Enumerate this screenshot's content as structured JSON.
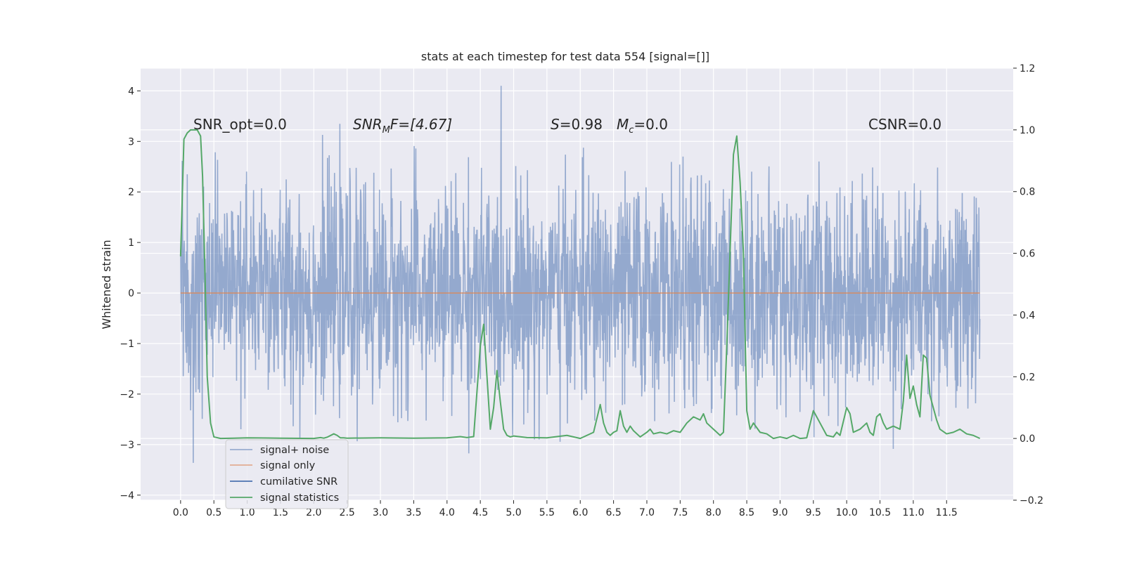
{
  "chart_data": {
    "type": "line",
    "title": "stats at each timestep for test data 554 [signal=[]]",
    "ylabel": "Whitened strain",
    "xlabel": "",
    "xlim": [
      -0.6,
      12.5
    ],
    "ylim": [
      -4.1,
      4.45
    ],
    "y2lim": [
      -0.2,
      1.2
    ],
    "grid": true,
    "x_ticks": [
      "0.0",
      "0.5",
      "1.0",
      "1.5",
      "2.0",
      "2.5",
      "3.0",
      "3.5",
      "4.0",
      "4.5",
      "5.0",
      "5.5",
      "6.0",
      "6.5",
      "7.0",
      "7.5",
      "8.0",
      "8.5",
      "9.0",
      "9.5",
      "10.0",
      "10.5",
      "11.0",
      "11.5"
    ],
    "y_ticks": [
      "4",
      "3",
      "2",
      "1",
      "0",
      "−1",
      "−2",
      "−3",
      "−4"
    ],
    "y2_ticks": [
      "1.2",
      "1.0",
      "0.8",
      "0.6",
      "0.4",
      "0.2",
      "0.0",
      "−0.2"
    ],
    "annotations": {
      "snr_opt": "SNR_opt=0.0",
      "snr_mf_sym": "SNR",
      "snr_mf_sub": "M",
      "snr_mf_rest": "F=[4.67]",
      "s_sym": "S",
      "s_rest": "=0.98",
      "mc_sym": "M",
      "mc_sub": "c",
      "mc_rest": "=0.0",
      "csnr": "CSNR=0.0"
    },
    "legend_placement": "lower-left",
    "series": [
      {
        "name": "signal+ noise",
        "axis": "left",
        "color": "#4c72b0",
        "note_visual": "dense whitened noise trace spanning roughly -3.7 to 4.1 over 0 to 12 s",
        "extent": {
          "x": [
            0.0,
            12.0
          ],
          "y_min": -3.7,
          "y_max": 4.1
        }
      },
      {
        "name": "signal only",
        "axis": "left",
        "color": "#dd8452",
        "x": [
          0.0,
          12.0
        ],
        "y": [
          0.0,
          0.0
        ]
      },
      {
        "name": "cumilative SNR",
        "axis": "right",
        "color": "#4c72b0",
        "x": [],
        "y": []
      },
      {
        "name": "signal statistics",
        "axis": "right",
        "color": "#55a868",
        "x": [
          0.0,
          0.05,
          0.1,
          0.15,
          0.25,
          0.3,
          0.33,
          0.37,
          0.4,
          0.45,
          0.5,
          0.6,
          0.8,
          1.0,
          1.5,
          2.0,
          2.1,
          2.15,
          2.2,
          2.3,
          2.35,
          2.4,
          2.45,
          2.5,
          3.0,
          3.5,
          4.0,
          4.2,
          4.3,
          4.4,
          4.5,
          4.55,
          4.65,
          4.7,
          4.75,
          4.8,
          4.85,
          4.9,
          4.95,
          5.0,
          5.2,
          5.5,
          5.8,
          6.0,
          6.2,
          6.3,
          6.35,
          6.4,
          6.45,
          6.5,
          6.55,
          6.6,
          6.65,
          6.7,
          6.75,
          6.8,
          6.9,
          7.0,
          7.05,
          7.1,
          7.2,
          7.3,
          7.4,
          7.5,
          7.6,
          7.7,
          7.8,
          7.85,
          7.9,
          8.0,
          8.1,
          8.15,
          8.2,
          8.3,
          8.35,
          8.4,
          8.45,
          8.5,
          8.55,
          8.6,
          8.7,
          8.8,
          8.9,
          9.0,
          9.1,
          9.2,
          9.3,
          9.4,
          9.5,
          9.6,
          9.7,
          9.8,
          9.85,
          9.9,
          10.0,
          10.05,
          10.1,
          10.2,
          10.3,
          10.35,
          10.4,
          10.45,
          10.5,
          10.55,
          10.6,
          10.7,
          10.8,
          10.85,
          10.9,
          10.95,
          11.0,
          11.05,
          11.1,
          11.15,
          11.2,
          11.25,
          11.3,
          11.35,
          11.4,
          11.5,
          11.6,
          11.7,
          11.8,
          11.9,
          12.0
        ],
        "y": [
          0.59,
          0.97,
          0.99,
          1.0,
          1.0,
          0.98,
          0.85,
          0.5,
          0.2,
          0.05,
          0.005,
          0.0,
          0.001,
          0.002,
          0.001,
          0.0,
          0.003,
          0.001,
          0.004,
          0.015,
          0.01,
          0.002,
          0.002,
          0.001,
          0.002,
          0.001,
          0.002,
          0.006,
          0.003,
          0.006,
          0.3,
          0.37,
          0.03,
          0.1,
          0.22,
          0.12,
          0.03,
          0.01,
          0.005,
          0.008,
          0.003,
          0.002,
          0.01,
          0.0,
          0.02,
          0.11,
          0.05,
          0.02,
          0.01,
          0.02,
          0.025,
          0.09,
          0.04,
          0.02,
          0.04,
          0.025,
          0.005,
          0.02,
          0.03,
          0.015,
          0.02,
          0.015,
          0.025,
          0.02,
          0.05,
          0.07,
          0.06,
          0.08,
          0.05,
          0.03,
          0.01,
          0.02,
          0.3,
          0.92,
          0.98,
          0.83,
          0.6,
          0.09,
          0.03,
          0.05,
          0.02,
          0.015,
          0.0,
          0.005,
          0.0,
          0.01,
          0.0,
          0.002,
          0.09,
          0.05,
          0.01,
          0.005,
          0.02,
          0.01,
          0.1,
          0.08,
          0.02,
          0.03,
          0.05,
          0.02,
          0.01,
          0.07,
          0.08,
          0.05,
          0.03,
          0.04,
          0.03,
          0.12,
          0.27,
          0.13,
          0.17,
          0.11,
          0.07,
          0.27,
          0.26,
          0.14,
          0.1,
          0.06,
          0.03,
          0.015,
          0.02,
          0.03,
          0.015,
          0.01,
          0.0
        ]
      }
    ]
  }
}
